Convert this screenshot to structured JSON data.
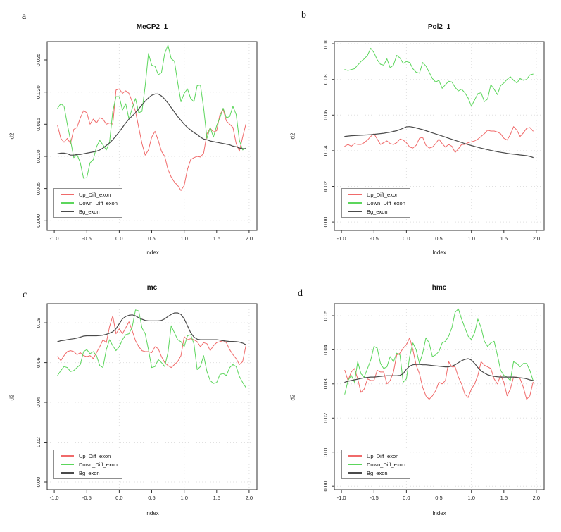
{
  "colors": {
    "red": "#f06a6a",
    "green": "#5cd65c",
    "black": "#4a4a4a",
    "grid": "#e0e0e0",
    "axis": "#333333",
    "text": "#222222",
    "legend_border": "#8f8f8f"
  },
  "chart_data": [
    {
      "panel_label": "a",
      "title": "MeCP2_1",
      "type": "line",
      "xlabel": "Index",
      "ylabel": "d2",
      "x_start": -0.95,
      "x_step": 0.05,
      "xlim": [
        -1.11,
        2.12
      ],
      "ylim": [
        -0.0015,
        0.02785
      ],
      "x_ticks": [
        -1.0,
        -0.5,
        0.0,
        0.5,
        1.0,
        1.5,
        2.0
      ],
      "x_tick_labels": [
        "-1.0",
        "-0.5",
        "0.0",
        "0.5",
        "1.0",
        "1.5",
        "2.0"
      ],
      "y_ticks": [
        0,
        0.005,
        0.01,
        0.015,
        0.02,
        0.025
      ],
      "y_tick_labels": [
        "0.000",
        "0.005",
        "0.010",
        "0.015",
        "0.020",
        "0.025"
      ],
      "grid_x": [
        0,
        1,
        2
      ],
      "grid_y": [
        0,
        0.01,
        0.02
      ],
      "grid_on": true,
      "legend_position": "bottom-left",
      "y_scale": 0.001,
      "series": [
        {
          "name": "Up_Diff_exon",
          "color": "red",
          "values": [
            14.8,
            12.8,
            12.2,
            12.8,
            12.0,
            14.2,
            14.5,
            16.0,
            17.1,
            16.8,
            15.0,
            15.8,
            15.2,
            16.0,
            15.8,
            15.0,
            15.2,
            15.0,
            20.3,
            20.5,
            19.8,
            20.2,
            19.8,
            18.5,
            17.0,
            14.5,
            12.0,
            10.2,
            11.0,
            13.0,
            13.9,
            12.5,
            10.8,
            10.0,
            8.0,
            6.8,
            6.0,
            5.5,
            4.7,
            5.5,
            8.0,
            9.5,
            9.8,
            10.0,
            9.9,
            10.5,
            13.5,
            14.4,
            13.8,
            14.0,
            16.5,
            17.3,
            15.5,
            15.0,
            14.5,
            12.0,
            10.8,
            13.0,
            15.0
          ]
        },
        {
          "name": "Down_Diff_exon",
          "color": "green",
          "values": [
            17.5,
            18.2,
            17.8,
            15.0,
            12.5,
            9.8,
            10.3,
            9.0,
            6.6,
            6.7,
            9.0,
            9.5,
            11.5,
            12.5,
            11.8,
            11.0,
            12.2,
            17.0,
            19.3,
            19.3,
            17.2,
            18.2,
            15.8,
            17.5,
            19.0,
            16.8,
            17.0,
            21.0,
            26.0,
            24.2,
            24.0,
            22.7,
            23.0,
            26.0,
            27.3,
            25.2,
            24.8,
            21.5,
            18.5,
            19.8,
            20.5,
            19.0,
            18.5,
            21.0,
            21.1,
            17.5,
            12.8,
            14.5,
            13.0,
            14.8,
            16.0,
            17.5,
            16.0,
            16.2,
            17.8,
            16.5,
            12.5,
            11.0,
            11.3
          ]
        },
        {
          "name": "Bg_exon",
          "color": "black",
          "values": [
            10.4,
            10.5,
            10.5,
            10.4,
            10.2,
            10.2,
            10.3,
            10.3,
            10.4,
            10.5,
            10.6,
            10.7,
            10.8,
            11.0,
            11.3,
            11.7,
            12.1,
            12.6,
            13.2,
            13.8,
            14.5,
            15.2,
            15.8,
            16.3,
            16.8,
            17.4,
            18.0,
            18.6,
            19.1,
            19.5,
            19.7,
            19.7,
            19.4,
            18.9,
            18.3,
            17.6,
            16.9,
            16.2,
            15.6,
            15.0,
            14.5,
            14.1,
            13.7,
            13.4,
            13.0,
            12.7,
            12.6,
            12.4,
            12.3,
            12.2,
            12.1,
            12.0,
            11.9,
            11.8,
            11.6,
            11.5,
            11.3,
            11.2,
            11.2
          ]
        }
      ]
    },
    {
      "panel_label": "b",
      "title": "Pol2_1",
      "type": "line",
      "xlabel": "Index",
      "ylabel": "d2",
      "x_start": -0.95,
      "x_step": 0.05,
      "xlim": [
        -1.11,
        2.12
      ],
      "ylim": [
        -0.0047,
        0.1012
      ],
      "x_ticks": [
        -1.0,
        -0.5,
        0.0,
        0.5,
        1.0,
        1.5,
        2.0
      ],
      "x_tick_labels": [
        "-1.0",
        "-0.5",
        "0.0",
        "0.5",
        "1.0",
        "1.5",
        "2.0"
      ],
      "y_ticks": [
        0,
        0.02,
        0.04,
        0.06,
        0.08,
        0.1
      ],
      "y_tick_labels": [
        "0.00",
        "0.02",
        "0.04",
        "0.06",
        "0.08",
        "0.10"
      ],
      "grid_x": [
        0,
        1,
        2
      ],
      "grid_y": [
        0,
        0.02,
        0.04,
        0.06,
        0.08,
        0.1
      ],
      "grid_on": true,
      "legend_position": "bottom-left",
      "y_scale": 0.001,
      "series": [
        {
          "name": "Up_Diff_exon",
          "color": "red",
          "values": [
            42.5,
            43.5,
            42.5,
            44.0,
            43.5,
            43.5,
            44.5,
            46.0,
            48.0,
            49.5,
            46.5,
            43.5,
            44.5,
            45.5,
            44.0,
            43.5,
            44.5,
            46.5,
            46.0,
            44.5,
            42.0,
            41.5,
            43.0,
            47.0,
            47.5,
            43.0,
            41.5,
            42.0,
            44.0,
            46.5,
            44.0,
            42.0,
            43.5,
            42.5,
            39.0,
            41.0,
            43.5,
            43.5,
            44.5,
            45.0,
            45.5,
            46.5,
            48.0,
            49.5,
            51.5,
            51.0,
            51.0,
            50.5,
            49.5,
            47.0,
            46.0,
            49.0,
            53.5,
            51.5,
            48.0,
            50.0,
            52.5,
            53.0,
            51.0
          ]
        },
        {
          "name": "Down_Diff_exon",
          "color": "green",
          "values": [
            85.5,
            85.0,
            85.5,
            86.0,
            88.0,
            90.0,
            91.5,
            93.5,
            97.5,
            95.0,
            91.0,
            88.5,
            88.0,
            91.5,
            86.5,
            88.0,
            93.5,
            92.0,
            89.0,
            90.0,
            89.5,
            86.0,
            84.0,
            83.5,
            89.5,
            87.5,
            84.0,
            80.5,
            78.5,
            79.5,
            75.0,
            77.0,
            79.0,
            78.5,
            75.5,
            73.5,
            74.5,
            72.5,
            69.5,
            65.0,
            68.5,
            72.0,
            72.5,
            67.5,
            69.0,
            77.0,
            74.5,
            71.5,
            76.5,
            78.0,
            80.0,
            81.5,
            79.5,
            78.0,
            80.5,
            79.5,
            80.0,
            82.5,
            83.0
          ]
        },
        {
          "name": "Bg_exon",
          "color": "black",
          "values": [
            48.0,
            48.2,
            48.4,
            48.5,
            48.6,
            48.7,
            48.8,
            48.9,
            49.0,
            49.2,
            49.4,
            49.6,
            49.8,
            50.1,
            50.4,
            50.8,
            51.2,
            51.9,
            52.6,
            53.4,
            53.5,
            53.2,
            52.8,
            52.3,
            51.8,
            51.2,
            50.6,
            50.0,
            49.4,
            48.8,
            48.2,
            47.6,
            47.0,
            46.4,
            45.8,
            45.2,
            44.6,
            44.0,
            43.4,
            42.9,
            42.4,
            41.9,
            41.4,
            41.0,
            40.6,
            40.2,
            39.8,
            39.4,
            39.1,
            38.8,
            38.5,
            38.2,
            38.0,
            37.8,
            37.6,
            37.4,
            37.2,
            36.8,
            36.2
          ]
        }
      ]
    },
    {
      "panel_label": "c",
      "title": "mc",
      "type": "line",
      "xlabel": "Index",
      "ylabel": "d2",
      "x_start": -0.95,
      "x_step": 0.05,
      "xlim": [
        -1.11,
        2.12
      ],
      "ylim": [
        -0.0039,
        0.0896
      ],
      "x_ticks": [
        -1.0,
        -0.5,
        0.0,
        0.5,
        1.0,
        1.5,
        2.0
      ],
      "x_tick_labels": [
        "-1.0",
        "-0.5",
        "0.0",
        "0.5",
        "1.0",
        "1.5",
        "2.0"
      ],
      "y_ticks": [
        0,
        0.02,
        0.04,
        0.06,
        0.08
      ],
      "y_tick_labels": [
        "0.00",
        "0.02",
        "0.04",
        "0.06",
        "0.08"
      ],
      "grid_x": [
        0,
        1,
        2
      ],
      "grid_y": [
        0,
        0.02,
        0.04,
        0.06,
        0.08
      ],
      "grid_on": true,
      "legend_position": "bottom-left",
      "y_scale": 0.001,
      "series": [
        {
          "name": "Up_Diff_exon",
          "color": "red",
          "values": [
            63.0,
            61.0,
            63.5,
            65.5,
            66.0,
            65.5,
            64.0,
            65.0,
            63.5,
            63.0,
            63.5,
            62.0,
            65.0,
            68.0,
            71.5,
            70.0,
            78.0,
            83.5,
            74.5,
            77.0,
            74.5,
            77.5,
            80.5,
            76.0,
            71.0,
            68.0,
            66.0,
            65.5,
            65.5,
            65.0,
            68.0,
            67.0,
            63.0,
            60.0,
            58.5,
            57.5,
            59.0,
            60.5,
            63.5,
            73.0,
            71.5,
            72.0,
            71.5,
            70.5,
            68.0,
            70.0,
            69.5,
            66.0,
            68.5,
            70.0,
            70.5,
            71.0,
            70.0,
            66.5,
            64.0,
            62.0,
            59.0,
            60.5,
            68.5
          ]
        },
        {
          "name": "Down_Diff_exon",
          "color": "green",
          "values": [
            53.5,
            56.0,
            58.0,
            57.5,
            55.5,
            56.0,
            57.5,
            59.0,
            65.5,
            66.5,
            64.5,
            65.5,
            63.5,
            58.5,
            57.5,
            66.5,
            71.5,
            68.5,
            66.0,
            68.0,
            71.5,
            74.0,
            74.5,
            78.0,
            86.5,
            86.0,
            77.5,
            74.5,
            66.5,
            57.5,
            58.0,
            61.5,
            60.0,
            58.0,
            65.0,
            78.5,
            75.0,
            71.5,
            70.5,
            68.0,
            73.5,
            74.0,
            69.5,
            56.5,
            58.0,
            63.5,
            55.5,
            51.0,
            49.5,
            50.0,
            54.0,
            54.5,
            53.5,
            57.5,
            59.0,
            58.0,
            53.0,
            50.0,
            47.5
          ]
        },
        {
          "name": "Bg_exon",
          "color": "black",
          "values": [
            70.5,
            71.0,
            71.2,
            71.5,
            71.8,
            72.0,
            72.3,
            72.8,
            73.3,
            73.5,
            73.5,
            73.5,
            73.5,
            73.6,
            73.8,
            74.2,
            74.8,
            75.5,
            77.0,
            79.5,
            82.0,
            83.2,
            83.8,
            84.0,
            83.5,
            82.5,
            81.8,
            81.2,
            81.0,
            81.0,
            81.0,
            81.0,
            81.2,
            82.0,
            83.2,
            84.2,
            85.0,
            85.0,
            84.2,
            82.0,
            78.5,
            75.0,
            72.8,
            71.8,
            71.5,
            71.5,
            71.5,
            71.5,
            71.5,
            71.5,
            71.3,
            71.0,
            70.8,
            70.6,
            70.6,
            70.5,
            70.3,
            69.8,
            69.0
          ]
        }
      ]
    },
    {
      "panel_label": "d",
      "title": "hmc",
      "type": "line",
      "xlabel": "Index",
      "ylabel": "d2",
      "x_start": -0.95,
      "x_step": 0.05,
      "xlim": [
        -1.11,
        2.12
      ],
      "ylim": [
        -0.001,
        0.0535
      ],
      "x_ticks": [
        -1.0,
        -0.5,
        0.0,
        0.5,
        1.0,
        1.5,
        2.0
      ],
      "x_tick_labels": [
        "-1.0",
        "-0.5",
        "0.0",
        "0.5",
        "1.0",
        "1.5",
        "2.0"
      ],
      "y_ticks": [
        0,
        0.01,
        0.02,
        0.03,
        0.04,
        0.05
      ],
      "y_tick_labels": [
        "0.00",
        "0.01",
        "0.02",
        "0.03",
        "0.04",
        "0.05"
      ],
      "grid_x": [
        0,
        1,
        2
      ],
      "grid_y": [
        0,
        0.01,
        0.02,
        0.03,
        0.04,
        0.05
      ],
      "grid_on": true,
      "legend_position": "bottom-left",
      "y_scale": 0.001,
      "series": [
        {
          "name": "Up_Diff_exon",
          "color": "red",
          "values": [
            34.0,
            31.0,
            33.5,
            34.5,
            31.5,
            27.5,
            28.5,
            31.5,
            31.0,
            31.0,
            34.0,
            33.5,
            33.5,
            30.0,
            31.0,
            33.5,
            38.5,
            39.0,
            40.5,
            41.5,
            43.5,
            40.0,
            35.5,
            33.0,
            29.0,
            26.5,
            25.5,
            26.5,
            28.0,
            30.5,
            30.0,
            31.0,
            36.5,
            35.0,
            35.0,
            32.0,
            30.0,
            27.0,
            26.0,
            28.5,
            30.0,
            32.5,
            36.5,
            35.5,
            35.0,
            34.5,
            31.5,
            30.0,
            32.5,
            30.5,
            26.5,
            28.5,
            32.0,
            32.0,
            31.5,
            29.0,
            25.5,
            26.5,
            30.5
          ]
        },
        {
          "name": "Down_Diff_exon",
          "color": "green",
          "values": [
            27.0,
            31.0,
            32.5,
            30.5,
            36.5,
            33.0,
            32.0,
            34.5,
            37.0,
            41.0,
            40.5,
            36.0,
            34.5,
            35.0,
            38.0,
            36.5,
            39.0,
            38.5,
            30.5,
            31.5,
            38.0,
            42.0,
            40.0,
            36.0,
            39.0,
            43.5,
            42.0,
            38.0,
            38.5,
            39.5,
            42.0,
            42.5,
            44.0,
            46.5,
            51.0,
            52.0,
            49.0,
            46.5,
            44.0,
            43.0,
            45.0,
            49.0,
            46.5,
            42.5,
            41.0,
            42.0,
            42.5,
            38.5,
            34.0,
            32.5,
            32.0,
            31.0,
            36.5,
            36.0,
            35.0,
            36.0,
            36.0,
            34.0,
            31.0
          ]
        },
        {
          "name": "Bg_exon",
          "color": "black",
          "values": [
            30.5,
            30.8,
            31.0,
            31.2,
            31.4,
            31.6,
            31.8,
            31.9,
            32.0,
            32.0,
            32.1,
            32.2,
            32.3,
            32.4,
            32.4,
            32.4,
            32.4,
            32.5,
            33.0,
            34.3,
            35.2,
            35.6,
            35.7,
            35.7,
            35.6,
            35.6,
            35.5,
            35.4,
            35.3,
            35.2,
            35.1,
            35.0,
            35.0,
            35.2,
            35.6,
            36.2,
            36.8,
            37.2,
            37.4,
            37.0,
            36.0,
            34.8,
            33.8,
            33.2,
            32.7,
            32.4,
            32.2,
            32.1,
            32.0,
            32.0,
            32.0,
            32.0,
            32.0,
            31.9,
            31.8,
            31.7,
            31.5,
            31.2,
            31.0
          ]
        }
      ]
    }
  ]
}
